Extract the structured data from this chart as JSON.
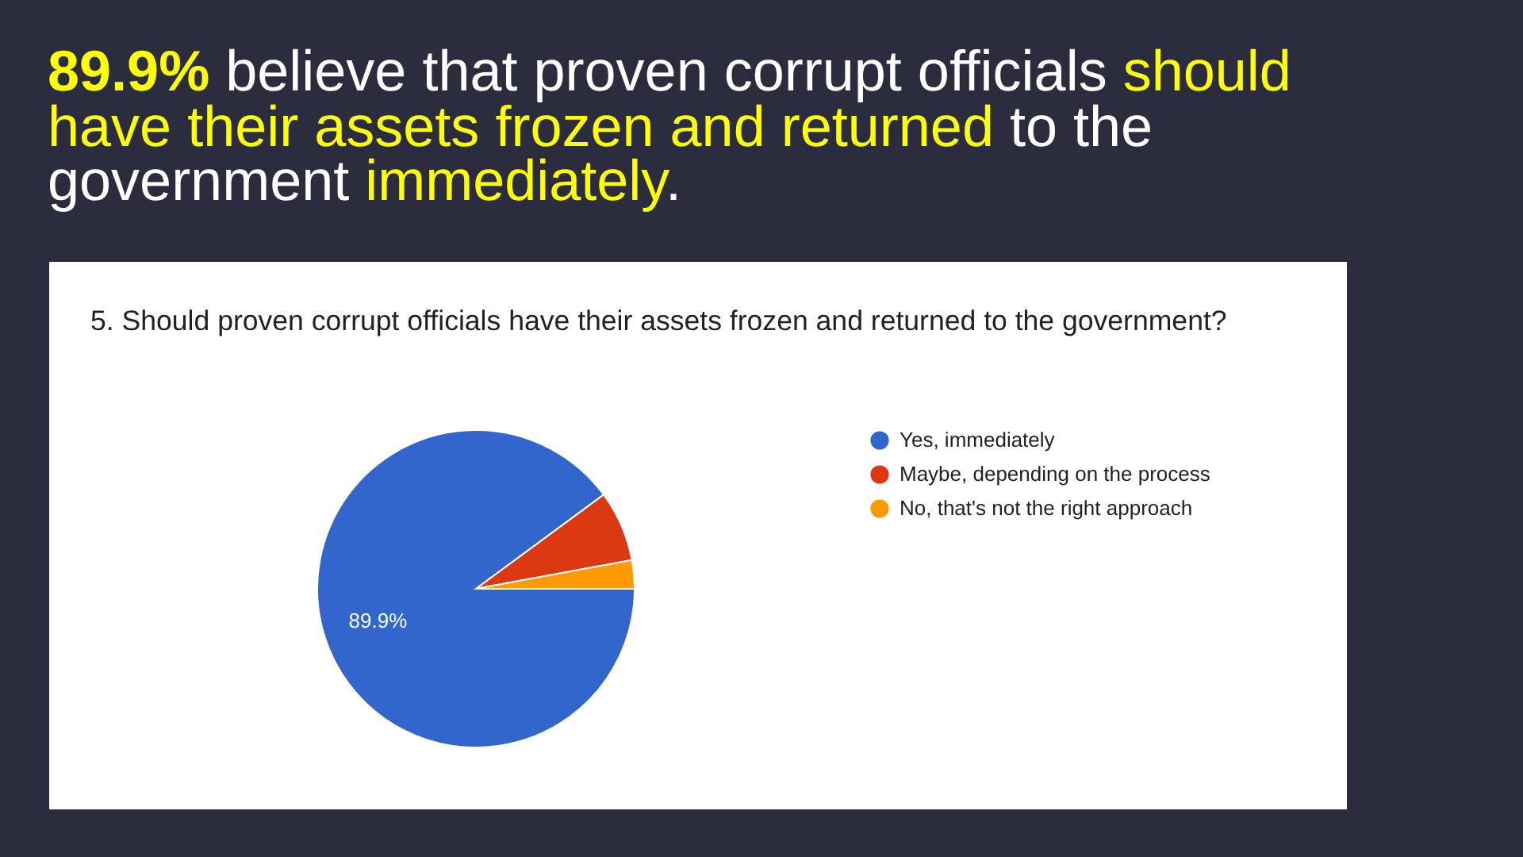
{
  "chart_data": {
    "type": "pie",
    "title": "89.9% believe that proven corrupt officials should have their assets frozen and returned to the government immediately.",
    "subtitle": "5. Should proven corrupt officials have their assets frozen and returned to the government?",
    "categories": [
      "Yes, immediately",
      "Maybe, depending on the process",
      "No, that's not the right approach"
    ],
    "values": [
      89.9,
      7.2,
      2.9
    ],
    "colors": [
      "#3366cc",
      "#dc3912",
      "#ff9900"
    ],
    "value_labels": [
      "89.9%",
      null,
      null
    ],
    "legend": "right"
  }
}
